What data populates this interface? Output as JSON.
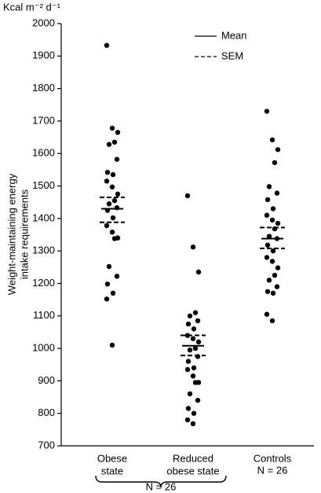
{
  "chart_data": {
    "type": "strip",
    "unit_label": "Kcal m⁻² d⁻¹",
    "y_label": [
      "Weight-maintaining energy",
      "intake requirements"
    ],
    "categories": [
      [
        "Obese",
        "state"
      ],
      [
        "Reduced",
        "obese state"
      ],
      [
        "Controls"
      ]
    ],
    "values": [
      [
        1933,
        1678,
        1665,
        1635,
        1628,
        1582,
        1542,
        1535,
        1515,
        1497,
        1475,
        1455,
        1445,
        1433,
        1425,
        1402,
        1378,
        1358,
        1340,
        1338,
        1252,
        1222,
        1198,
        1170,
        1152,
        1010
      ],
      [
        1470,
        1312,
        1235,
        1110,
        1100,
        1085,
        1075,
        1060,
        1040,
        1030,
        1020,
        1000,
        995,
        975,
        960,
        940,
        935,
        915,
        895,
        895,
        860,
        840,
        815,
        800,
        780,
        768
      ],
      [
        1730,
        1642,
        1612,
        1572,
        1498,
        1478,
        1458,
        1430,
        1410,
        1395,
        1385,
        1368,
        1345,
        1338,
        1318,
        1300,
        1280,
        1268,
        1248,
        1225,
        1210,
        1190,
        1175,
        1170,
        1105,
        1085
      ]
    ],
    "mean": [
      1430,
      1008,
      1338
    ],
    "sem_upper": [
      1465,
      1040,
      1372
    ],
    "sem_lower": [
      1388,
      978,
      1308
    ],
    "legend": {
      "mean": "Mean",
      "sem": "SEM"
    },
    "annotations": {
      "controls_n": "N = 26",
      "obese_n": "N = 26"
    },
    "color": "#000000",
    "ylim": [
      700,
      2000
    ],
    "yticks": [
      700,
      800,
      900,
      1000,
      1100,
      1200,
      1300,
      1400,
      1500,
      1600,
      1700,
      1800,
      1900,
      2000
    ]
  }
}
